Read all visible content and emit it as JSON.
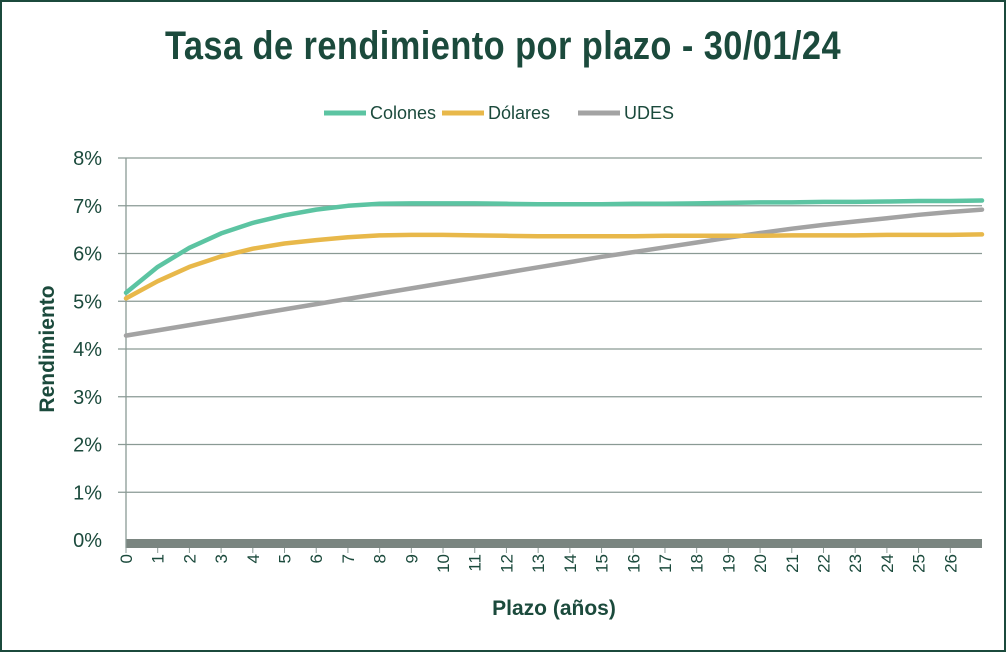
{
  "chart_data": {
    "type": "line",
    "title": "Tasa de rendimiento por plazo - 30/01/24",
    "xlabel": "Plazo (años)",
    "ylabel": "Rendimiento",
    "x": [
      0,
      1,
      2,
      3,
      4,
      5,
      6,
      7,
      8,
      9,
      10,
      11,
      12,
      13,
      14,
      15,
      16,
      17,
      18,
      19,
      20,
      21,
      22,
      23,
      24,
      25,
      26,
      27
    ],
    "x_tick_labels": [
      "0",
      "1",
      "2",
      "3",
      "4",
      "5",
      "6",
      "7",
      "8",
      "9",
      "10",
      "11",
      "12",
      "13",
      "14",
      "15",
      "16",
      "17",
      "18",
      "19",
      "20",
      "21",
      "22",
      "23",
      "24",
      "25",
      "26"
    ],
    "y_tick_labels": [
      "0%",
      "1%",
      "2%",
      "3%",
      "4%",
      "5%",
      "6%",
      "7%",
      "8%"
    ],
    "ylim": [
      0,
      8
    ],
    "xlim": [
      0,
      27
    ],
    "grid": true,
    "legend_position": "top",
    "series": [
      {
        "name": "Colones",
        "color": "#5cc4a2",
        "values": [
          5.18,
          5.72,
          6.12,
          6.42,
          6.64,
          6.8,
          6.92,
          7.0,
          7.04,
          7.05,
          7.05,
          7.05,
          7.04,
          7.03,
          7.03,
          7.03,
          7.04,
          7.04,
          7.05,
          7.06,
          7.07,
          7.07,
          7.08,
          7.08,
          7.09,
          7.1,
          7.1,
          7.11
        ]
      },
      {
        "name": "Dólares",
        "color": "#e8b84a",
        "values": [
          5.06,
          5.42,
          5.72,
          5.94,
          6.1,
          6.21,
          6.28,
          6.34,
          6.38,
          6.39,
          6.39,
          6.38,
          6.37,
          6.36,
          6.36,
          6.36,
          6.36,
          6.37,
          6.37,
          6.37,
          6.37,
          6.38,
          6.38,
          6.38,
          6.39,
          6.39,
          6.39,
          6.4
        ]
      },
      {
        "name": "UDES",
        "color": "#a3a3a3",
        "values": [
          4.28,
          4.39,
          4.5,
          4.61,
          4.72,
          4.83,
          4.94,
          5.05,
          5.16,
          5.27,
          5.38,
          5.49,
          5.6,
          5.71,
          5.82,
          5.93,
          6.03,
          6.13,
          6.23,
          6.33,
          6.43,
          6.52,
          6.6,
          6.67,
          6.74,
          6.81,
          6.87,
          6.92
        ]
      }
    ]
  }
}
